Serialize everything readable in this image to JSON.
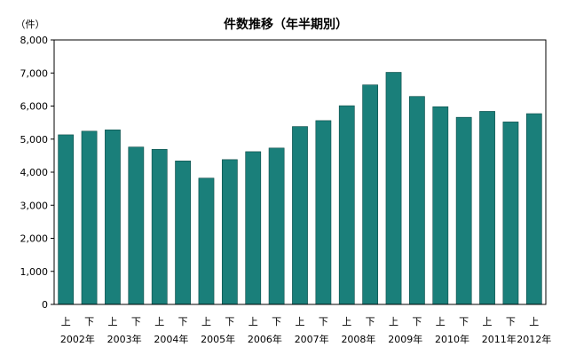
{
  "chart_data": {
    "type": "bar",
    "title": "件数推移（年半期別）",
    "unit_label": "（件）",
    "bar_color": "#1a7f7a",
    "ylim": [
      0,
      8000
    ],
    "yticks": [
      "0",
      "1,000",
      "2,000",
      "3,000",
      "4,000",
      "5,000",
      "6,000",
      "7,000",
      "8,000"
    ],
    "grid": false,
    "categories": [
      "上",
      "下",
      "上",
      "下",
      "上",
      "下",
      "上",
      "下",
      "上",
      "下",
      "上",
      "下",
      "上",
      "下",
      "上",
      "下",
      "上",
      "下",
      "上",
      "下",
      "上"
    ],
    "years": [
      "2002年",
      "2003年",
      "2004年",
      "2005年",
      "2006年",
      "2007年",
      "2008年",
      "2009年",
      "2010年",
      "2011年",
      "2012年"
    ],
    "values": [
      5130,
      5240,
      5280,
      4760,
      4690,
      4340,
      3820,
      4380,
      4620,
      4730,
      5380,
      5560,
      6010,
      6640,
      7020,
      6290,
      5980,
      5660,
      5840,
      5520,
      5770
    ]
  }
}
